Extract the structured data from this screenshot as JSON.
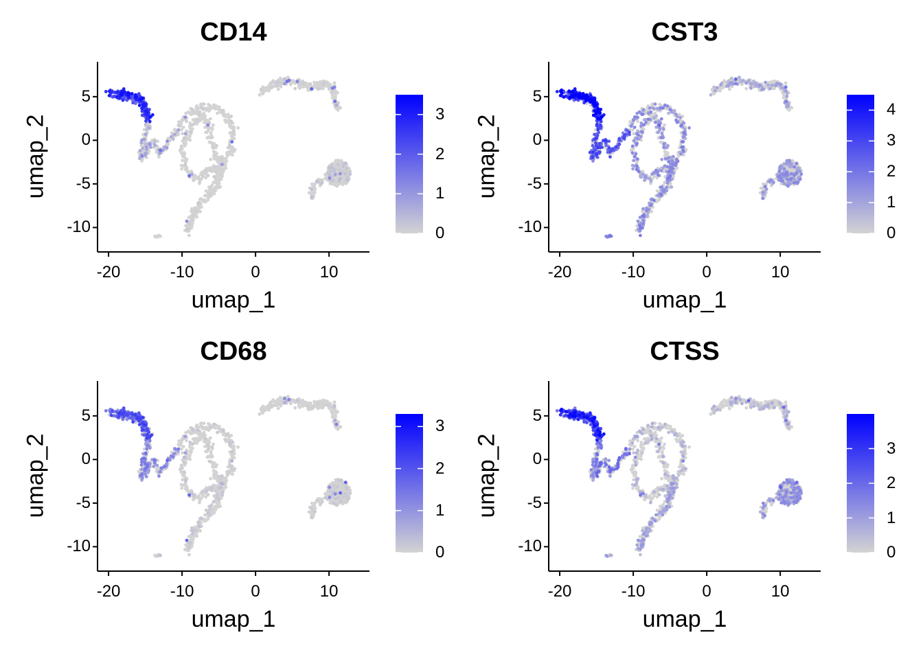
{
  "colors": {
    "low": "#d3d3d3",
    "high": "#0000ff"
  },
  "axes": {
    "xlabel": "umap_1",
    "ylabel": "umap_2",
    "xlim": [
      -21.5,
      15.5
    ],
    "ylim": [
      -12.8,
      9.0
    ],
    "xticks": [
      -20,
      -10,
      0,
      10
    ],
    "yticks": [
      5,
      0,
      -5,
      -10
    ],
    "xtick_labels": [
      "-20",
      "-10",
      "0",
      "10"
    ],
    "ytick_labels": [
      "5",
      "0",
      "-5",
      "-10"
    ]
  },
  "chart_data": [
    {
      "type": "scatter",
      "title": "CD14",
      "xlabel": "umap_1",
      "ylabel": "umap_2",
      "legend_position": "right",
      "color_scale": {
        "min": 0,
        "max": 3.5,
        "ticks": [
          0,
          1,
          2,
          3
        ],
        "labels": [
          "0",
          "1",
          "2",
          "3"
        ]
      },
      "expression_by_region": {
        "left_arm_upper": 2.2,
        "left_arm_lower": 0.6,
        "loop": 0.1,
        "stem": 0.1,
        "top_right": 0.1,
        "right_blob": 0.25,
        "small_cluster": 0
      }
    },
    {
      "type": "scatter",
      "title": "CST3",
      "xlabel": "umap_1",
      "ylabel": "umap_2",
      "legend_position": "right",
      "color_scale": {
        "min": 0,
        "max": 4.5,
        "ticks": [
          0,
          1,
          2,
          3,
          4
        ],
        "labels": [
          "0",
          "1",
          "2",
          "3",
          "4"
        ]
      },
      "expression_by_region": {
        "left_arm_upper": 3.5,
        "left_arm_lower": 2.2,
        "loop": 1.2,
        "stem": 1.3,
        "top_right": 0.8,
        "right_blob": 1.1,
        "small_cluster": 1.5
      }
    },
    {
      "type": "scatter",
      "title": "CD68",
      "xlabel": "umap_1",
      "ylabel": "umap_2",
      "legend_position": "right",
      "color_scale": {
        "min": 0,
        "max": 3.3,
        "ticks": [
          0,
          1,
          2,
          3
        ],
        "labels": [
          "0",
          "1",
          "2",
          "3"
        ]
      },
      "expression_by_region": {
        "left_arm_upper": 1.6,
        "left_arm_lower": 1.0,
        "loop": 0.15,
        "stem": 0.2,
        "top_right": 0.05,
        "right_blob": 0.15,
        "small_cluster": 0.2
      }
    },
    {
      "type": "scatter",
      "title": "CTSS",
      "xlabel": "umap_1",
      "ylabel": "umap_2",
      "legend_position": "right",
      "color_scale": {
        "min": 0,
        "max": 4.0,
        "ticks": [
          0,
          1,
          2,
          3
        ],
        "labels": [
          "0",
          "1",
          "2",
          "3"
        ]
      },
      "expression_by_region": {
        "left_arm_upper": 2.6,
        "left_arm_lower": 1.4,
        "loop": 0.5,
        "stem": 0.8,
        "top_right": 0.5,
        "right_blob": 1.0,
        "small_cluster": 0.8
      }
    }
  ],
  "umap_regions": [
    {
      "name": "left_arm_upper",
      "n": 230,
      "path": [
        [
          -19.8,
          5.4
        ],
        [
          -18,
          5.2
        ],
        [
          -16.5,
          5.0
        ],
        [
          -15.5,
          4.6
        ],
        [
          -15,
          3.5
        ],
        [
          -14.5,
          2.5
        ]
      ],
      "spread": 0.55
    },
    {
      "name": "left_arm_lower",
      "n": 180,
      "path": [
        [
          -15,
          3.0
        ],
        [
          -14.5,
          1.5
        ],
        [
          -15,
          0.5
        ],
        [
          -15.3,
          -1.0
        ],
        [
          -15.5,
          -2.2
        ],
        [
          -14,
          0
        ],
        [
          -13,
          -1.5
        ],
        [
          -11.5,
          0.2
        ],
        [
          -10.5,
          1.2
        ]
      ],
      "spread": 0.5
    },
    {
      "name": "loop",
      "n": 420,
      "path": [
        [
          -10.5,
          1.2
        ],
        [
          -9.5,
          2.8
        ],
        [
          -8,
          3.6
        ],
        [
          -6,
          3.8
        ],
        [
          -4.5,
          3.3
        ],
        [
          -3.5,
          2.2
        ],
        [
          -3,
          0.5
        ],
        [
          -3.5,
          -1.5
        ],
        [
          -4.5,
          -2.5
        ],
        [
          -5.5,
          -2.0
        ],
        [
          -6,
          0
        ],
        [
          -6.5,
          2
        ],
        [
          -7.5,
          3.0
        ],
        [
          -9.5,
          0.3
        ],
        [
          -10,
          -1.5
        ],
        [
          -9.5,
          -3.0
        ],
        [
          -8.5,
          -4.5
        ],
        [
          -7,
          -4
        ],
        [
          -5.5,
          -3
        ],
        [
          -5,
          -5
        ]
      ],
      "spread": 0.55
    },
    {
      "name": "stem",
      "n": 200,
      "path": [
        [
          -4.5,
          -2.5
        ],
        [
          -5,
          -4.5
        ],
        [
          -5.5,
          -5.5
        ],
        [
          -6.5,
          -6.3
        ],
        [
          -7.5,
          -7.2
        ],
        [
          -8.5,
          -8.5
        ],
        [
          -9,
          -10.2
        ],
        [
          -9.2,
          -10.5
        ]
      ],
      "spread": 0.5
    },
    {
      "name": "top_right",
      "n": 260,
      "path": [
        [
          0.5,
          5.3
        ],
        [
          2,
          6.2
        ],
        [
          4,
          6.8
        ],
        [
          6,
          6.5
        ],
        [
          8,
          6.0
        ],
        [
          9.5,
          6.5
        ],
        [
          10.5,
          6.2
        ],
        [
          10.8,
          4.5
        ],
        [
          11.2,
          3.5
        ]
      ],
      "spread": 0.5
    },
    {
      "name": "right_blob",
      "n": 300,
      "blob": {
        "cx": 11.3,
        "cy": -3.8,
        "rx": 1.6,
        "ry": 1.5
      },
      "tail": [
        [
          9.8,
          -4.2
        ],
        [
          8.7,
          -4.8
        ],
        [
          7.8,
          -5.5
        ],
        [
          7.6,
          -6.3
        ]
      ]
    },
    {
      "name": "small_cluster",
      "n": 10,
      "blob": {
        "cx": -13.3,
        "cy": -11.0,
        "rx": 0.45,
        "ry": 0.15
      }
    }
  ]
}
